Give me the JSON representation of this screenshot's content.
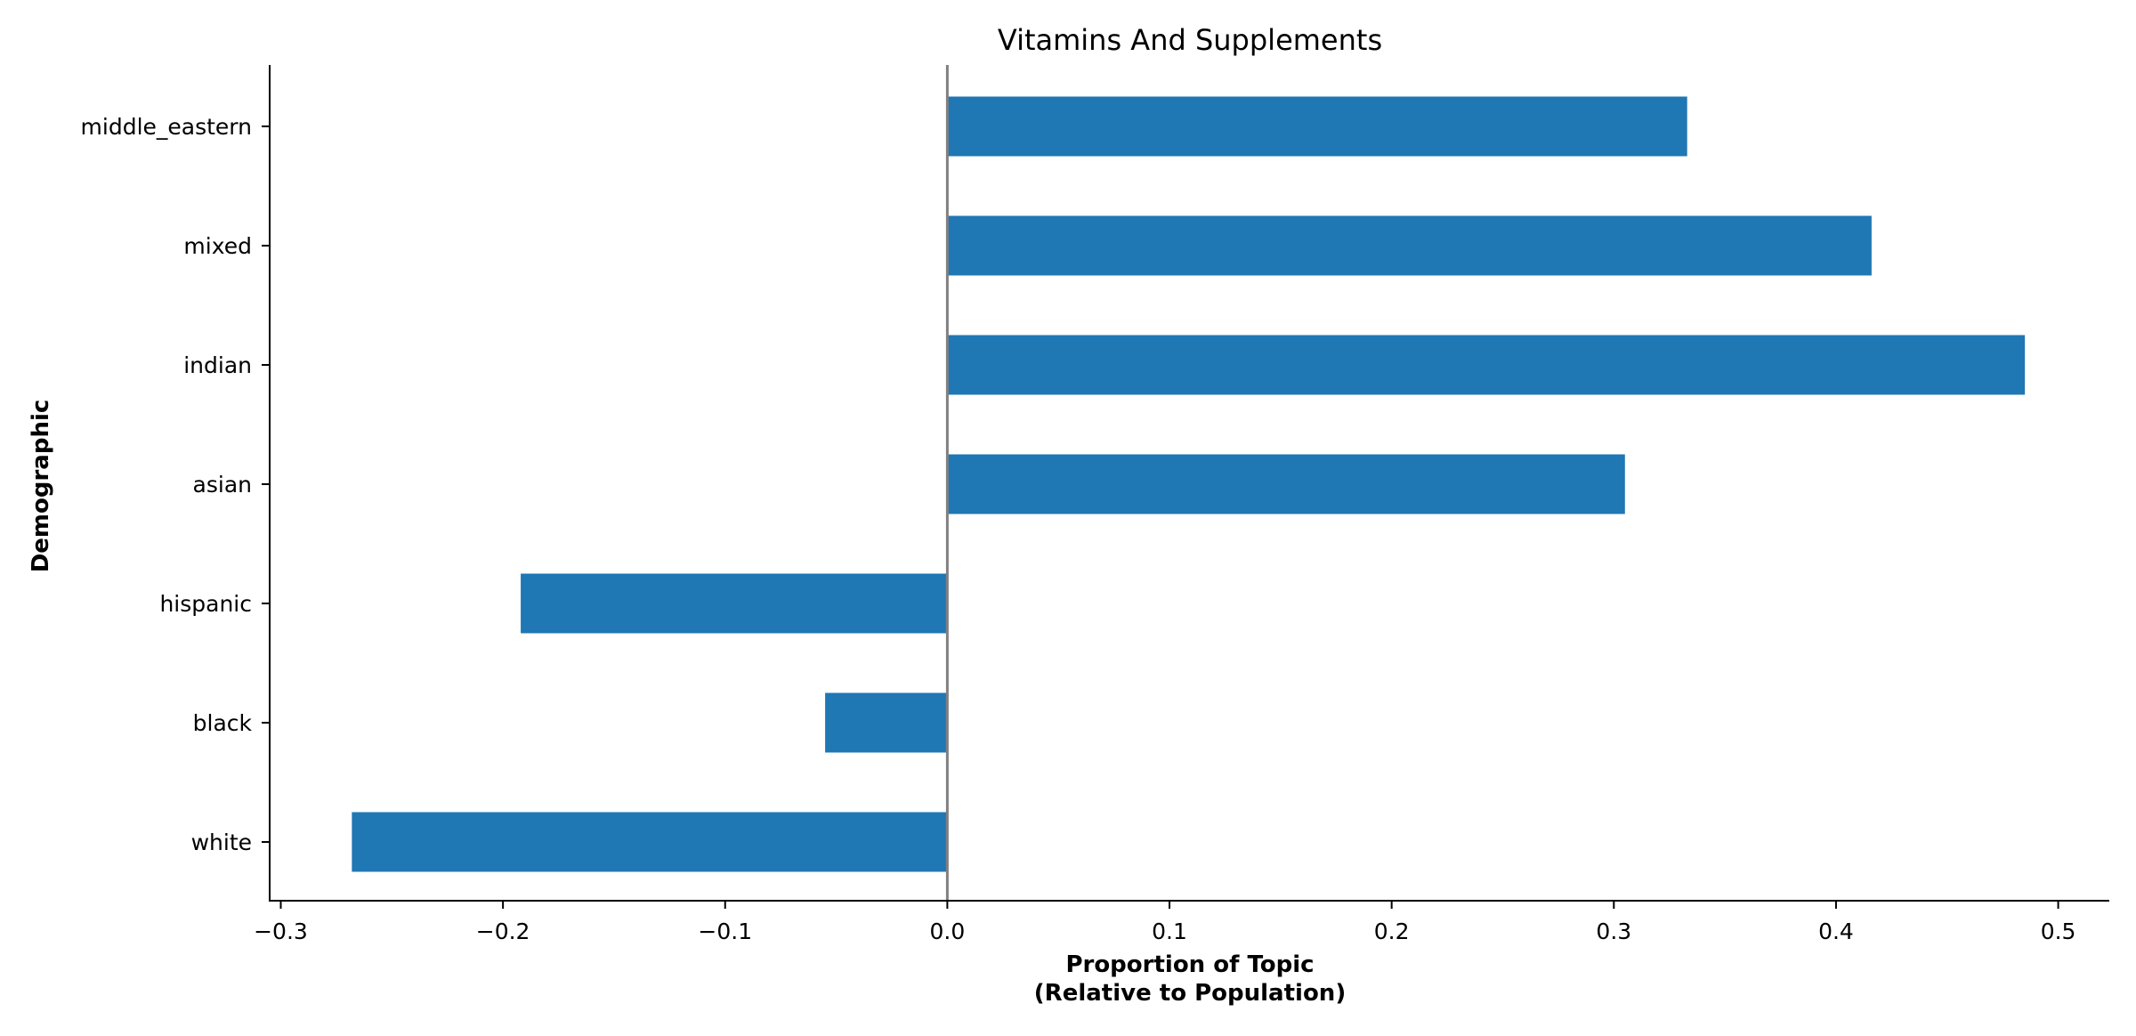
{
  "chart_data": {
    "type": "bar",
    "orientation": "horizontal",
    "title": "Vitamins And Supplements",
    "xlabel_line1": "Proportion of Topic",
    "xlabel_line2": "(Relative to Population)",
    "ylabel": "Demographic",
    "categories": [
      "middle_eastern",
      "mixed",
      "indian",
      "asian",
      "hispanic",
      "black",
      "white"
    ],
    "values": [
      0.333,
      0.416,
      0.485,
      0.305,
      -0.192,
      -0.055,
      -0.268
    ],
    "xlim": [
      -0.305,
      0.523
    ],
    "xticks": [
      -0.3,
      -0.2,
      -0.1,
      0.0,
      0.1,
      0.2,
      0.3,
      0.4,
      0.5
    ],
    "xtick_labels": [
      "−0.3",
      "−0.2",
      "−0.1",
      "0.0",
      "0.1",
      "0.2",
      "0.3",
      "0.4",
      "0.5"
    ],
    "bar_color": "#1f77b4",
    "zero_line_color": "#808080",
    "grid": false,
    "legend": "none"
  }
}
